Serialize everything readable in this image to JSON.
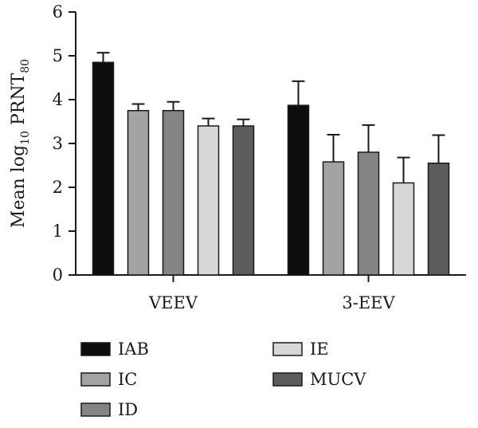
{
  "chart_data": {
    "type": "bar",
    "categories": [
      "VEEV",
      "3-EEV"
    ],
    "series": [
      {
        "name": "IAB",
        "color": "#0d0d0d",
        "values": [
          4.85,
          3.87
        ],
        "errors": [
          0.22,
          0.55
        ]
      },
      {
        "name": "IC",
        "color": "#a3a3a5",
        "values": [
          3.75,
          2.58
        ],
        "errors": [
          0.15,
          0.62
        ]
      },
      {
        "name": "ID",
        "color": "#858586",
        "values": [
          3.75,
          2.8
        ],
        "errors": [
          0.2,
          0.62
        ]
      },
      {
        "name": "IE",
        "color": "#d7d7d7",
        "values": [
          3.4,
          2.1
        ],
        "errors": [
          0.17,
          0.58
        ]
      },
      {
        "name": "MUCV",
        "color": "#5c5c5c",
        "values": [
          3.4,
          2.55
        ],
        "errors": [
          0.15,
          0.64
        ]
      }
    ],
    "ylabel": {
      "main": "Mean log",
      "sub1": "10",
      "mid": " PRNT",
      "sub2": "80"
    },
    "ylim": [
      0,
      6
    ],
    "yticks": [
      0,
      1,
      2,
      3,
      4,
      5,
      6
    ],
    "legend_position": "bottom"
  }
}
